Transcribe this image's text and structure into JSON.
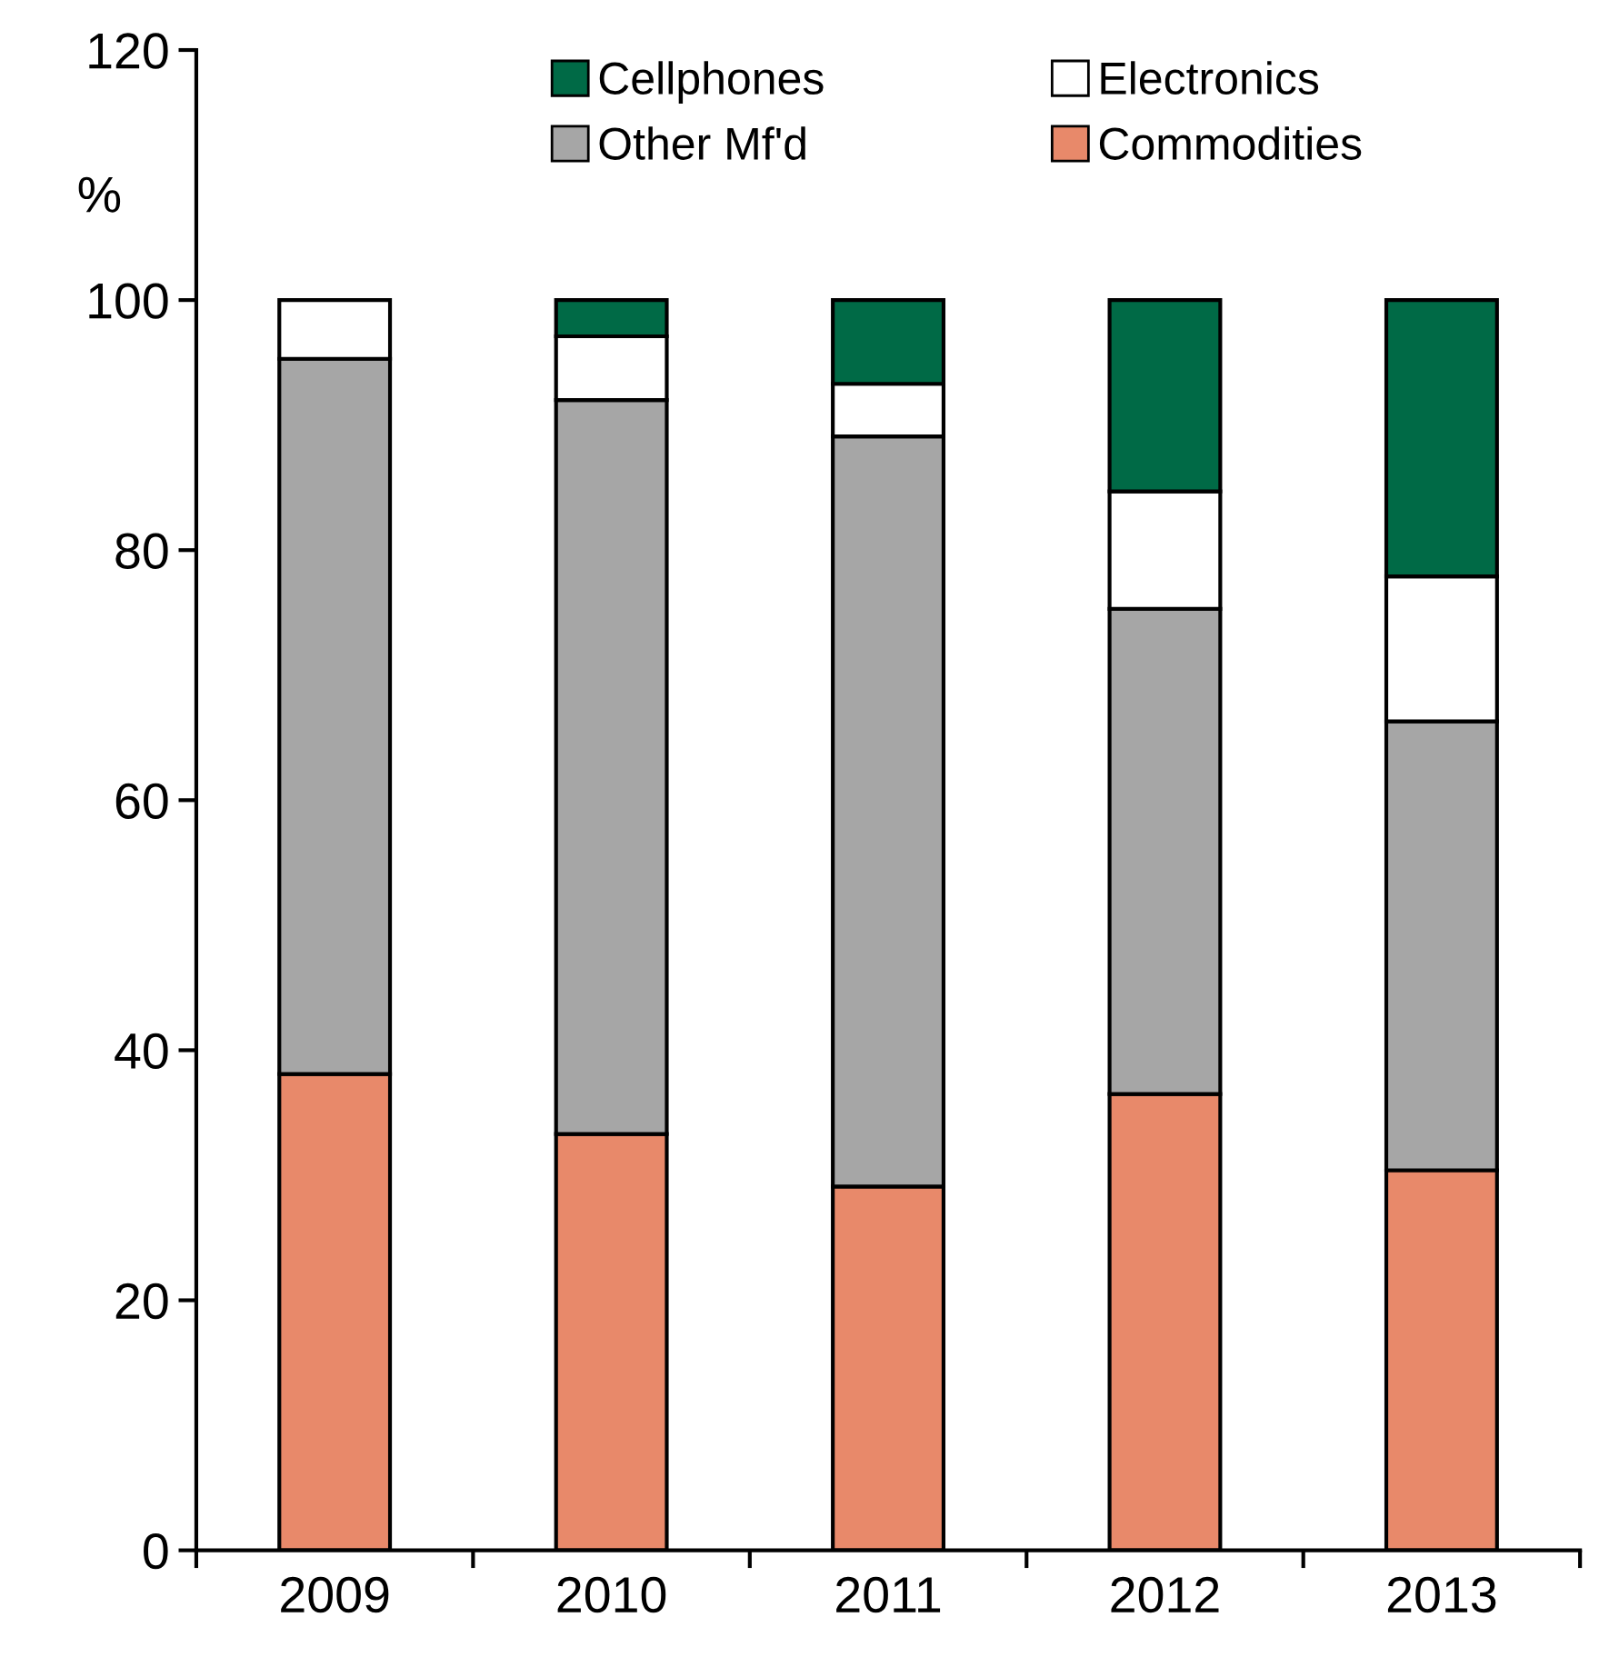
{
  "chart_data": {
    "type": "bar",
    "stacked": true,
    "ylabel": "%",
    "categories": [
      "2009",
      "2010",
      "2011",
      "2012",
      "2013"
    ],
    "series": [
      {
        "name": "Commodities",
        "color": "#e8896a",
        "values": [
          38.1,
          33.3,
          29.1,
          36.5,
          30.4
        ]
      },
      {
        "name": "Other Mf'd",
        "color": "#a6a6a6",
        "values": [
          57.2,
          58.7,
          60.0,
          38.8,
          35.9
        ]
      },
      {
        "name": "Electronics",
        "color": "#ffffff",
        "values": [
          4.7,
          5.1,
          4.2,
          9.4,
          11.6
        ]
      },
      {
        "name": "Cellphones",
        "color": "#006a46",
        "values": [
          null,
          2.9,
          6.7,
          15.3,
          22.1
        ]
      }
    ],
    "ylim": [
      0,
      120
    ],
    "yticks": [
      0,
      20,
      40,
      60,
      80,
      100,
      120
    ],
    "grid": false,
    "legend": "top"
  }
}
